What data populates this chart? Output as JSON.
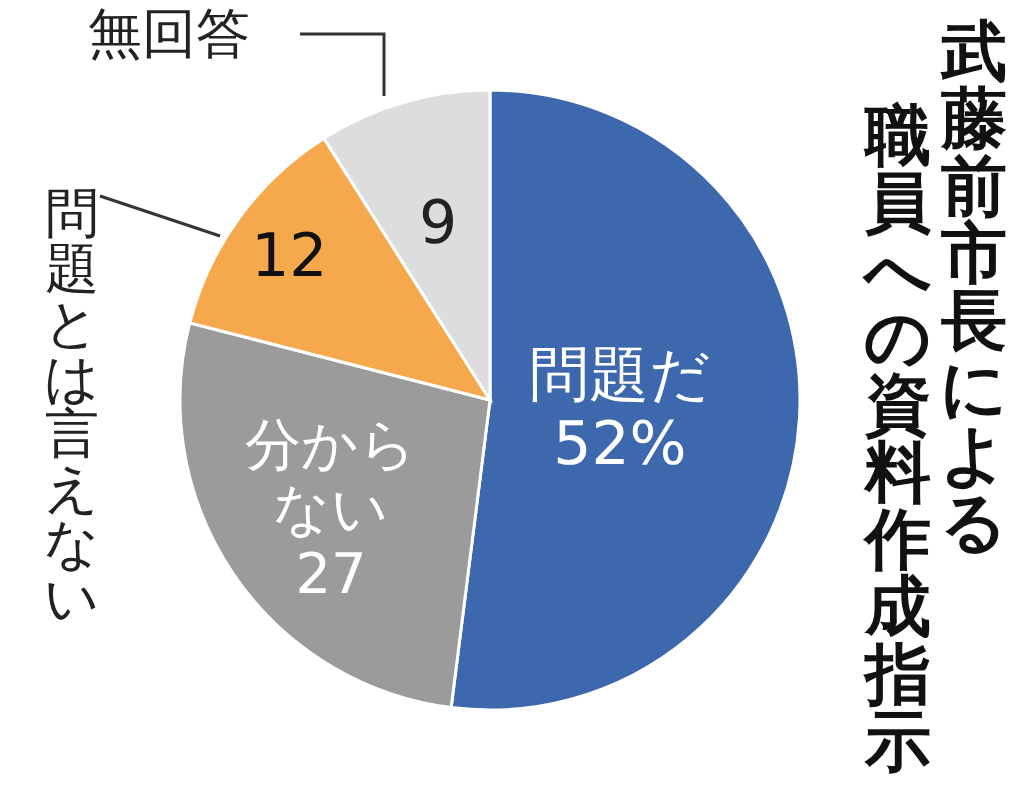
{
  "chart_data": {
    "type": "pie",
    "title": "武藤前市長による",
    "subtitle": "職員への資料作成指示",
    "categories": [
      "問題だ",
      "分からない",
      "問題とは言えない",
      "無回答"
    ],
    "values": [
      52,
      27,
      12,
      9
    ],
    "colors": [
      "#3d68ae",
      "#9b9b9b",
      "#f6a84c",
      "#dddddd"
    ],
    "value_labels": [
      "52%",
      "27",
      "12",
      "9"
    ]
  }
}
